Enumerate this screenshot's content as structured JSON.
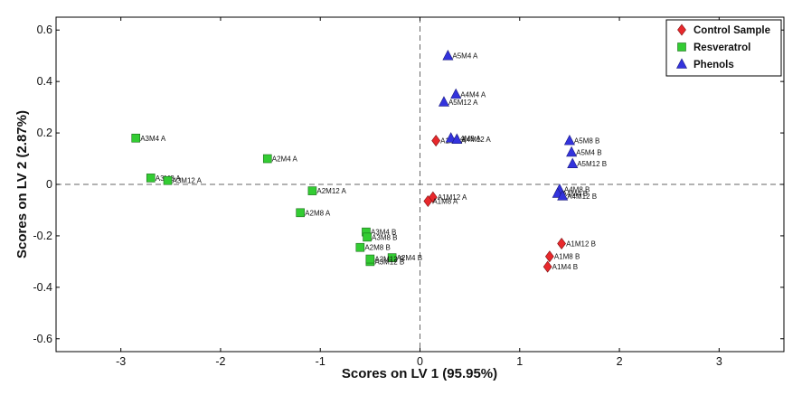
{
  "chart_data": {
    "type": "scatter",
    "xlabel": "Scores on LV 1 (95.95%)",
    "ylabel": "Scores on LV 2 (2.87%)",
    "xlim": [
      -3.65,
      3.65
    ],
    "ylim": [
      -0.65,
      0.65
    ],
    "xticks": [
      -3,
      -2,
      -1,
      0,
      1,
      2,
      3
    ],
    "yticks": [
      -0.6,
      -0.4,
      -0.2,
      0,
      0.2,
      0.4,
      0.6
    ],
    "xtick_labels": [
      "-3",
      "-2",
      "-1",
      "0",
      "1",
      "2",
      "3"
    ],
    "ytick_labels": [
      "-0.6",
      "-0.4",
      "-0.2",
      "0",
      "0.2",
      "0.4",
      "0.6"
    ],
    "reference_lines": {
      "x": 0,
      "y": 0,
      "style": "dashed"
    },
    "legend_position": "top-right",
    "series": [
      {
        "name": "Control Sample",
        "marker": "diamond",
        "color": "#e8282c",
        "points": [
          {
            "label": "A1M4 A",
            "x": 0.16,
            "y": 0.17
          },
          {
            "label": "A1M12 A",
            "x": 0.13,
            "y": -0.05
          },
          {
            "label": "A1M8 A",
            "x": 0.08,
            "y": -0.065
          },
          {
            "label": "A1M12  B",
            "x": 1.42,
            "y": -0.23
          },
          {
            "label": "A1M8  B",
            "x": 1.3,
            "y": -0.28
          },
          {
            "label": "A1M4 B",
            "x": 1.28,
            "y": -0.32
          }
        ]
      },
      {
        "name": "Resveratrol",
        "marker": "square",
        "color": "#33cc33",
        "points": [
          {
            "label": "A3M4 A",
            "x": -2.85,
            "y": 0.18
          },
          {
            "label": "A2M4 A",
            "x": -1.53,
            "y": 0.1
          },
          {
            "label": "A3M8 A",
            "x": -2.7,
            "y": 0.025
          },
          {
            "label": "A3M12 A",
            "x": -2.53,
            "y": 0.015
          },
          {
            "label": "A2M12 A",
            "x": -1.08,
            "y": -0.025
          },
          {
            "label": "A2M8 A",
            "x": -1.2,
            "y": -0.11
          },
          {
            "label": "A3M4 B",
            "x": -0.54,
            "y": -0.185
          },
          {
            "label": "A3M8  B",
            "x": -0.53,
            "y": -0.205
          },
          {
            "label": "A2M8  B",
            "x": -0.6,
            "y": -0.245
          },
          {
            "label": "A2M4 B",
            "x": -0.28,
            "y": -0.285
          },
          {
            "label": "A3M12 B",
            "x": -0.5,
            "y": -0.3
          },
          {
            "label": "A2M12 B",
            "x": -0.5,
            "y": -0.29
          }
        ]
      },
      {
        "name": "Phenols",
        "marker": "triangle",
        "color": "#3333dd",
        "points": [
          {
            "label": "A5M4 A",
            "x": 0.28,
            "y": 0.5
          },
          {
            "label": "A4M4 A",
            "x": 0.36,
            "y": 0.35
          },
          {
            "label": "A5M12 A",
            "x": 0.24,
            "y": 0.32
          },
          {
            "label": "A4M8 A",
            "x": 0.31,
            "y": 0.18
          },
          {
            "label": "A4M12 A",
            "x": 0.37,
            "y": 0.175
          },
          {
            "label": "A5M8  B",
            "x": 1.5,
            "y": 0.17
          },
          {
            "label": "A5M4  B",
            "x": 1.52,
            "y": 0.125
          },
          {
            "label": "A5M12 B",
            "x": 1.53,
            "y": 0.08
          },
          {
            "label": "A4M8  B",
            "x": 1.4,
            "y": -0.02
          },
          {
            "label": "A4M4 B",
            "x": 1.38,
            "y": -0.035
          },
          {
            "label": "A4M12 B",
            "x": 1.43,
            "y": -0.045
          }
        ]
      }
    ]
  }
}
